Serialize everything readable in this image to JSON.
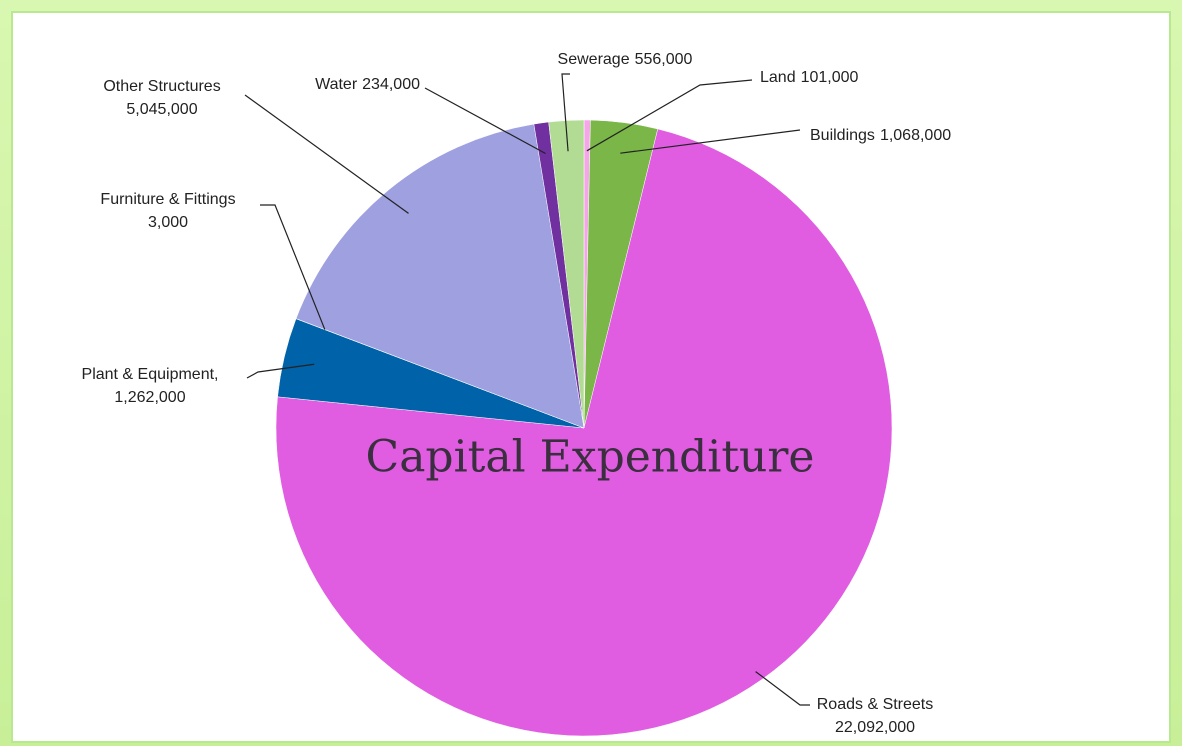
{
  "chart_data": {
    "type": "pie",
    "title": "Capital Expenditure",
    "categories": [
      "Land",
      "Buildings",
      "Roads & Streets",
      "Plant & Equipment,",
      "Furniture & Fittings",
      "Other Structures",
      "Water",
      "Sewerage"
    ],
    "values": [
      101000,
      1068000,
      22092000,
      1262000,
      3000,
      5045000,
      234000,
      556000
    ],
    "value_labels": [
      "101,000",
      "1,068,000",
      "22,092,000",
      "1,262,000",
      "3,000",
      "5,045,000",
      "234,000",
      "556,000"
    ],
    "colors": [
      "#f4a6e6",
      "#7ab648",
      "#e05ce0",
      "#0062a8",
      "#8a8a8a",
      "#9ea0e0",
      "#7030a0",
      "#b2dc94"
    ]
  }
}
